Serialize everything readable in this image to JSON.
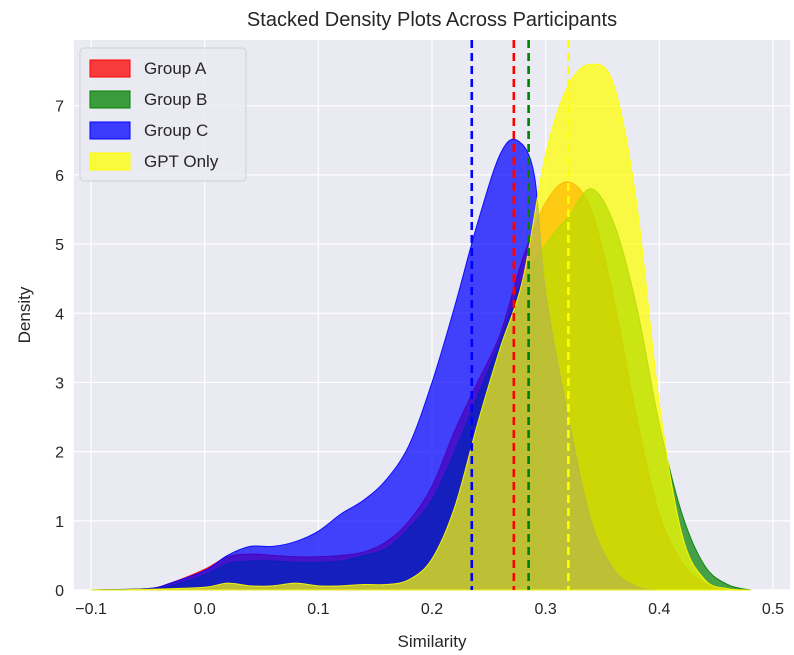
{
  "chart_data": {
    "type": "area",
    "title": "Stacked Density Plots Across Participants",
    "xlabel": "Similarity",
    "ylabel": "Density",
    "xlim": [
      -0.115,
      0.515
    ],
    "ylim": [
      0,
      7.95
    ],
    "x_ticks": [
      -0.1,
      0.0,
      0.1,
      0.2,
      0.3,
      0.4,
      0.5
    ],
    "x_tick_labels": [
      "−0.1",
      "0.0",
      "0.1",
      "0.2",
      "0.3",
      "0.4",
      "0.5"
    ],
    "y_ticks": [
      0,
      1,
      2,
      3,
      4,
      5,
      6,
      7
    ],
    "y_tick_labels": [
      "0",
      "1",
      "2",
      "3",
      "4",
      "5",
      "6",
      "7"
    ],
    "grid": true,
    "background": "#eaeaf2",
    "legend_position": "top-left",
    "series": [
      {
        "name": "Group A",
        "color": "#ff0000",
        "mean": 0.272,
        "points": [
          [
            -0.1,
            0
          ],
          [
            -0.05,
            0.02
          ],
          [
            -0.03,
            0.1
          ],
          [
            0.0,
            0.3
          ],
          [
            0.02,
            0.48
          ],
          [
            0.04,
            0.52
          ],
          [
            0.06,
            0.5
          ],
          [
            0.08,
            0.48
          ],
          [
            0.1,
            0.48
          ],
          [
            0.12,
            0.5
          ],
          [
            0.14,
            0.55
          ],
          [
            0.16,
            0.7
          ],
          [
            0.18,
            1.0
          ],
          [
            0.2,
            1.5
          ],
          [
            0.22,
            2.3
          ],
          [
            0.24,
            3.0
          ],
          [
            0.26,
            3.7
          ],
          [
            0.28,
            4.8
          ],
          [
            0.3,
            5.6
          ],
          [
            0.32,
            5.9
          ],
          [
            0.34,
            5.5
          ],
          [
            0.36,
            4.2
          ],
          [
            0.38,
            2.5
          ],
          [
            0.4,
            1.1
          ],
          [
            0.42,
            0.4
          ],
          [
            0.44,
            0.1
          ],
          [
            0.46,
            0.02
          ],
          [
            0.48,
            0
          ]
        ]
      },
      {
        "name": "Group B",
        "color": "#008000",
        "mean": 0.285,
        "points": [
          [
            -0.1,
            0
          ],
          [
            -0.05,
            0.02
          ],
          [
            -0.03,
            0.06
          ],
          [
            0.0,
            0.22
          ],
          [
            0.02,
            0.38
          ],
          [
            0.04,
            0.42
          ],
          [
            0.06,
            0.42
          ],
          [
            0.08,
            0.4
          ],
          [
            0.1,
            0.4
          ],
          [
            0.12,
            0.42
          ],
          [
            0.14,
            0.5
          ],
          [
            0.16,
            0.6
          ],
          [
            0.18,
            0.9
          ],
          [
            0.2,
            1.3
          ],
          [
            0.22,
            2.0
          ],
          [
            0.24,
            2.8
          ],
          [
            0.26,
            3.6
          ],
          [
            0.28,
            4.5
          ],
          [
            0.3,
            5.0
          ],
          [
            0.32,
            5.4
          ],
          [
            0.34,
            5.8
          ],
          [
            0.36,
            5.3
          ],
          [
            0.38,
            4.1
          ],
          [
            0.4,
            2.4
          ],
          [
            0.42,
            1.1
          ],
          [
            0.44,
            0.35
          ],
          [
            0.46,
            0.08
          ],
          [
            0.48,
            0
          ]
        ]
      },
      {
        "name": "Group C",
        "color": "#0000ff",
        "mean": 0.235,
        "points": [
          [
            -0.1,
            0
          ],
          [
            -0.05,
            0.02
          ],
          [
            -0.03,
            0.1
          ],
          [
            0.0,
            0.28
          ],
          [
            0.02,
            0.5
          ],
          [
            0.04,
            0.63
          ],
          [
            0.06,
            0.63
          ],
          [
            0.08,
            0.7
          ],
          [
            0.1,
            0.85
          ],
          [
            0.12,
            1.1
          ],
          [
            0.14,
            1.3
          ],
          [
            0.16,
            1.6
          ],
          [
            0.18,
            2.1
          ],
          [
            0.2,
            3.0
          ],
          [
            0.22,
            4.1
          ],
          [
            0.24,
            5.3
          ],
          [
            0.26,
            6.3
          ],
          [
            0.275,
            6.5
          ],
          [
            0.29,
            6.0
          ],
          [
            0.3,
            4.3
          ],
          [
            0.32,
            2.5
          ],
          [
            0.34,
            1.0
          ],
          [
            0.36,
            0.3
          ],
          [
            0.38,
            0.05
          ],
          [
            0.4,
            0
          ]
        ]
      },
      {
        "name": "GPT Only",
        "color": "#ffff00",
        "mean": 0.32,
        "points": [
          [
            -0.1,
            0
          ],
          [
            -0.05,
            0.01
          ],
          [
            0.0,
            0.04
          ],
          [
            0.02,
            0.1
          ],
          [
            0.04,
            0.06
          ],
          [
            0.06,
            0.06
          ],
          [
            0.08,
            0.1
          ],
          [
            0.1,
            0.06
          ],
          [
            0.12,
            0.06
          ],
          [
            0.14,
            0.08
          ],
          [
            0.16,
            0.08
          ],
          [
            0.18,
            0.15
          ],
          [
            0.2,
            0.45
          ],
          [
            0.22,
            1.2
          ],
          [
            0.24,
            2.4
          ],
          [
            0.26,
            3.5
          ],
          [
            0.28,
            4.5
          ],
          [
            0.3,
            6.3
          ],
          [
            0.32,
            7.3
          ],
          [
            0.34,
            7.6
          ],
          [
            0.36,
            7.3
          ],
          [
            0.38,
            5.6
          ],
          [
            0.4,
            2.7
          ],
          [
            0.42,
            0.8
          ],
          [
            0.44,
            0.15
          ],
          [
            0.46,
            0.02
          ],
          [
            0.48,
            0
          ]
        ]
      }
    ]
  }
}
